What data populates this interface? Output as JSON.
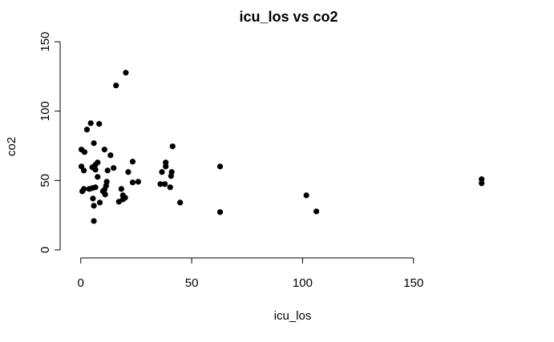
{
  "chart_data": {
    "type": "scatter",
    "title": "icu_los vs co2",
    "x_label": "icu_los",
    "y_label": "co2",
    "x": [
      15.9,
      20.3,
      4.5,
      2.8,
      8.3,
      5.9,
      0.3,
      1.7,
      10.7,
      13.4,
      41.4,
      0.3,
      1.4,
      5.2,
      6.6,
      7.6,
      6.6,
      12.1,
      14.8,
      23.4,
      21.4,
      7.6,
      11.7,
      11.4,
      10.7,
      11.0,
      10.0,
      5.2,
      6.6,
      3.8,
      0.7,
      1.4,
      5.5,
      8.6,
      5.9,
      5.9,
      18.3,
      19.0,
      19.0,
      17.2,
      20.0,
      23.4,
      25.9,
      38.3,
      38.3,
      36.6,
      41.0,
      40.7,
      35.9,
      37.9,
      40.3,
      44.8,
      62.8,
      62.8,
      101.7,
      106.2,
      180.7,
      180.7
    ],
    "series": [
      {
        "name": "co2",
        "color": "#000000",
        "values": [
          118.5,
          127.7,
          91.3,
          86.7,
          90.8,
          76.9,
          72.3,
          70.5,
          72.3,
          68.2,
          74.6,
          60.1,
          57.2,
          59.5,
          61.3,
          63.0,
          57.8,
          57.2,
          59.0,
          63.6,
          56.1,
          52.6,
          49.1,
          46.2,
          43.4,
          39.9,
          42.2,
          44.5,
          45.1,
          43.9,
          42.2,
          43.9,
          37.0,
          34.1,
          31.8,
          20.8,
          43.9,
          39.3,
          36.4,
          34.7,
          37.6,
          48.6,
          49.1,
          63.0,
          60.1,
          56.1,
          56.1,
          53.2,
          47.4,
          47.4,
          45.1,
          34.1,
          60.1,
          27.2,
          39.3,
          27.7,
          50.9,
          48.0
        ]
      }
    ],
    "xlim": [
      -9.3,
      192
    ],
    "ylim": [
      -5.8,
      157
    ],
    "xticks": [
      0,
      50,
      100,
      150
    ],
    "yticks": [
      0,
      50,
      100,
      150
    ]
  }
}
